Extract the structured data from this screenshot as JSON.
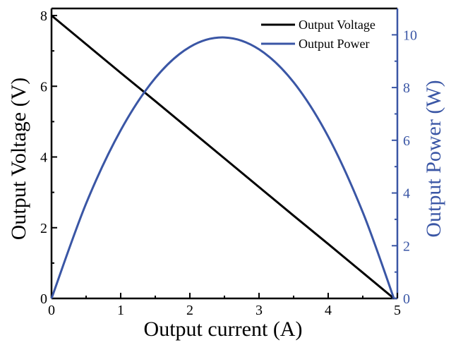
{
  "chart_data": {
    "type": "line",
    "xlabel": "Output current (A)",
    "ylabel_left": "Output Voltage (V)",
    "ylabel_right": "Output Power (W)",
    "xlim": [
      0,
      5
    ],
    "ylim_left": [
      0,
      8.2
    ],
    "ylim_right": [
      0,
      11
    ],
    "xticks": [
      "0",
      "1",
      "2",
      "3",
      "4",
      "5"
    ],
    "yticks_left": [
      "0",
      "2",
      "4",
      "6",
      "8"
    ],
    "yticks_right": [
      "0",
      "2",
      "4",
      "6",
      "8",
      "10"
    ],
    "colors": {
      "left_axis": "#000000",
      "right_axis": "#3a56a5",
      "voltage": "#000000",
      "power": "#3a56a5"
    },
    "legend_position": "top-right",
    "grid": false,
    "series": [
      {
        "name": "Output Voltage",
        "axis": "left",
        "x": [
          0,
          0.5,
          1.0,
          1.5,
          2.0,
          2.5,
          3.0,
          3.5,
          4.0,
          4.5,
          4.95
        ],
        "y": [
          8.0,
          7.19,
          6.38,
          5.58,
          4.77,
          3.96,
          3.15,
          2.34,
          1.54,
          0.73,
          0.0
        ]
      },
      {
        "name": "Output Power",
        "axis": "right",
        "x": [
          0,
          0.5,
          1.0,
          1.5,
          2.0,
          2.5,
          3.0,
          3.5,
          4.0,
          4.5,
          4.95
        ],
        "y": [
          0,
          3.6,
          6.38,
          8.36,
          9.54,
          9.9,
          9.45,
          8.2,
          6.14,
          3.27,
          0
        ]
      }
    ]
  }
}
